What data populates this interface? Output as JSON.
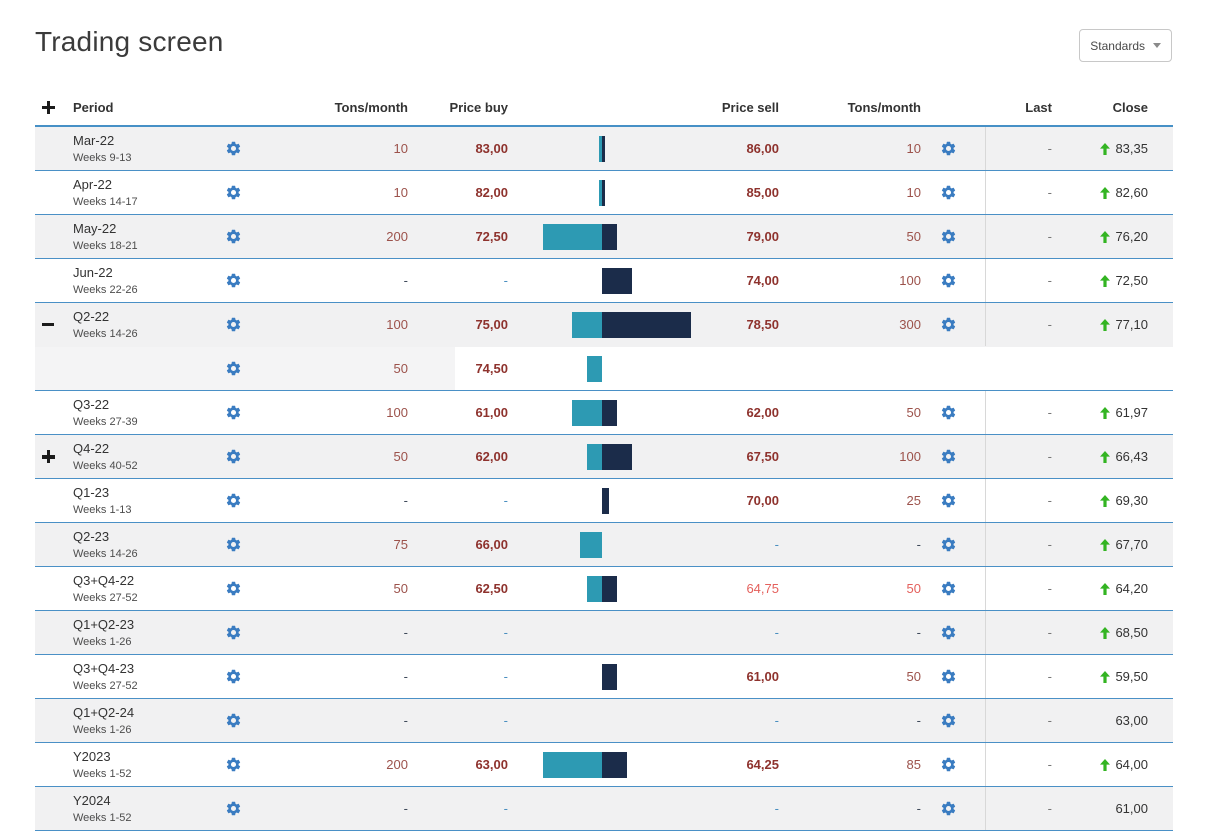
{
  "page_title": "Trading screen",
  "standards_button": {
    "label": "Standards"
  },
  "colors": {
    "gear_blue": "#3a7cc1",
    "bar_teal": "#2d9ab3",
    "bar_navy": "#1b2c4a",
    "row_border_blue": "#4a90c6",
    "price_red": "#8e322d",
    "tons_red": "#9c524b",
    "muted_pink": "#e4605c",
    "up_green": "#33b422",
    "shaded_row": "#f1f1f2",
    "divider_gray": "#d8d8d8"
  },
  "table": {
    "headers": {
      "period": "Period",
      "tons_buy": "Tons/month",
      "price_buy": "Price buy",
      "price_sell": "Price sell",
      "tons_sell": "Tons/month",
      "last": "Last",
      "close": "Close"
    },
    "rows": [
      {
        "period": "Mar-22",
        "weeks": "Weeks 9-13",
        "toggle": null,
        "buy_tons": "10",
        "buy_price": "83,00",
        "bar_buy": 10,
        "bar_sell": 10,
        "sell_price": "86,00",
        "sell_tons": "10",
        "last": "-",
        "close": "83,35",
        "close_up": true,
        "shaded": true,
        "muted_sell": false,
        "child": false,
        "no_bottom_border": false
      },
      {
        "period": "Apr-22",
        "weeks": "Weeks 14-17",
        "toggle": null,
        "buy_tons": "10",
        "buy_price": "82,00",
        "bar_buy": 10,
        "bar_sell": 10,
        "sell_price": "85,00",
        "sell_tons": "10",
        "last": "-",
        "close": "82,60",
        "close_up": true,
        "shaded": false,
        "muted_sell": false,
        "child": false,
        "no_bottom_border": false
      },
      {
        "period": "May-22",
        "weeks": "Weeks 18-21",
        "toggle": null,
        "buy_tons": "200",
        "buy_price": "72,50",
        "bar_buy": 200,
        "bar_sell": 50,
        "sell_price": "79,00",
        "sell_tons": "50",
        "last": "-",
        "close": "76,20",
        "close_up": true,
        "shaded": true,
        "muted_sell": false,
        "child": false,
        "no_bottom_border": false
      },
      {
        "period": "Jun-22",
        "weeks": "Weeks 22-26",
        "toggle": null,
        "buy_tons": "-",
        "buy_price": "-",
        "bar_buy": 0,
        "bar_sell": 100,
        "sell_price": "74,00",
        "sell_tons": "100",
        "last": "-",
        "close": "72,50",
        "close_up": true,
        "shaded": false,
        "muted_sell": false,
        "child": false,
        "no_bottom_border": false
      },
      {
        "period": "Q2-22",
        "weeks": "Weeks 14-26",
        "toggle": "minus",
        "buy_tons": "100",
        "buy_price": "75,00",
        "bar_buy": 100,
        "bar_sell": 300,
        "sell_price": "78,50",
        "sell_tons": "300",
        "last": "-",
        "close": "77,10",
        "close_up": true,
        "shaded": true,
        "muted_sell": false,
        "child": false,
        "no_bottom_border": true
      },
      {
        "period": "",
        "weeks": "",
        "toggle": null,
        "buy_tons": "50",
        "buy_price": "74,50",
        "bar_buy": 50,
        "bar_sell": 0,
        "sell_price": "",
        "sell_tons": "",
        "last": null,
        "close": null,
        "close_up": false,
        "shaded": false,
        "muted_sell": false,
        "child": true,
        "no_bottom_border": false
      },
      {
        "period": "Q3-22",
        "weeks": "Weeks 27-39",
        "toggle": null,
        "buy_tons": "100",
        "buy_price": "61,00",
        "bar_buy": 100,
        "bar_sell": 50,
        "sell_price": "62,00",
        "sell_tons": "50",
        "last": "-",
        "close": "61,97",
        "close_up": true,
        "shaded": false,
        "muted_sell": false,
        "child": false,
        "no_bottom_border": false
      },
      {
        "period": "Q4-22",
        "weeks": "Weeks 40-52",
        "toggle": "plus",
        "buy_tons": "50",
        "buy_price": "62,00",
        "bar_buy": 50,
        "bar_sell": 100,
        "sell_price": "67,50",
        "sell_tons": "100",
        "last": "-",
        "close": "66,43",
        "close_up": true,
        "shaded": true,
        "muted_sell": false,
        "child": false,
        "no_bottom_border": false
      },
      {
        "period": "Q1-23",
        "weeks": "Weeks 1-13",
        "toggle": null,
        "buy_tons": "-",
        "buy_price": "-",
        "bar_buy": 0,
        "bar_sell": 25,
        "sell_price": "70,00",
        "sell_tons": "25",
        "last": "-",
        "close": "69,30",
        "close_up": true,
        "shaded": false,
        "muted_sell": false,
        "child": false,
        "no_bottom_border": false
      },
      {
        "period": "Q2-23",
        "weeks": "Weeks 14-26",
        "toggle": null,
        "buy_tons": "75",
        "buy_price": "66,00",
        "bar_buy": 75,
        "bar_sell": 0,
        "sell_price": "-",
        "sell_tons": "-",
        "last": "-",
        "close": "67,70",
        "close_up": true,
        "shaded": true,
        "muted_sell": false,
        "child": false,
        "no_bottom_border": false
      },
      {
        "period": "Q3+Q4-22",
        "weeks": "Weeks 27-52",
        "toggle": null,
        "buy_tons": "50",
        "buy_price": "62,50",
        "bar_buy": 50,
        "bar_sell": 50,
        "sell_price": "64,75",
        "sell_tons": "50",
        "last": "-",
        "close": "64,20",
        "close_up": true,
        "shaded": false,
        "muted_sell": true,
        "child": false,
        "no_bottom_border": false
      },
      {
        "period": "Q1+Q2-23",
        "weeks": "Weeks 1-26",
        "toggle": null,
        "buy_tons": "-",
        "buy_price": "-",
        "bar_buy": 0,
        "bar_sell": 0,
        "sell_price": "-",
        "sell_tons": "-",
        "last": "-",
        "close": "68,50",
        "close_up": true,
        "shaded": true,
        "muted_sell": false,
        "child": false,
        "no_bottom_border": false
      },
      {
        "period": "Q3+Q4-23",
        "weeks": "Weeks 27-52",
        "toggle": null,
        "buy_tons": "-",
        "buy_price": "-",
        "bar_buy": 0,
        "bar_sell": 50,
        "sell_price": "61,00",
        "sell_tons": "50",
        "last": "-",
        "close": "59,50",
        "close_up": true,
        "shaded": false,
        "muted_sell": false,
        "child": false,
        "no_bottom_border": false
      },
      {
        "period": "Q1+Q2-24",
        "weeks": "Weeks 1-26",
        "toggle": null,
        "buy_tons": "-",
        "buy_price": "-",
        "bar_buy": 0,
        "bar_sell": 0,
        "sell_price": "-",
        "sell_tons": "-",
        "last": "-",
        "close": "63,00",
        "close_up": false,
        "shaded": true,
        "muted_sell": false,
        "child": false,
        "no_bottom_border": false
      },
      {
        "period": "Y2023",
        "weeks": "Weeks 1-52",
        "toggle": null,
        "buy_tons": "200",
        "buy_price": "63,00",
        "bar_buy": 200,
        "bar_sell": 85,
        "sell_price": "64,25",
        "sell_tons": "85",
        "last": "-",
        "close": "64,00",
        "close_up": true,
        "shaded": false,
        "muted_sell": false,
        "child": false,
        "no_bottom_border": false
      },
      {
        "period": "Y2024",
        "weeks": "Weeks 1-52",
        "toggle": null,
        "buy_tons": "-",
        "buy_price": "-",
        "bar_buy": 0,
        "bar_sell": 0,
        "sell_price": "-",
        "sell_tons": "-",
        "last": "-",
        "close": "61,00",
        "close_up": false,
        "shaded": true,
        "muted_sell": false,
        "child": false,
        "no_bottom_border": false
      }
    ]
  }
}
